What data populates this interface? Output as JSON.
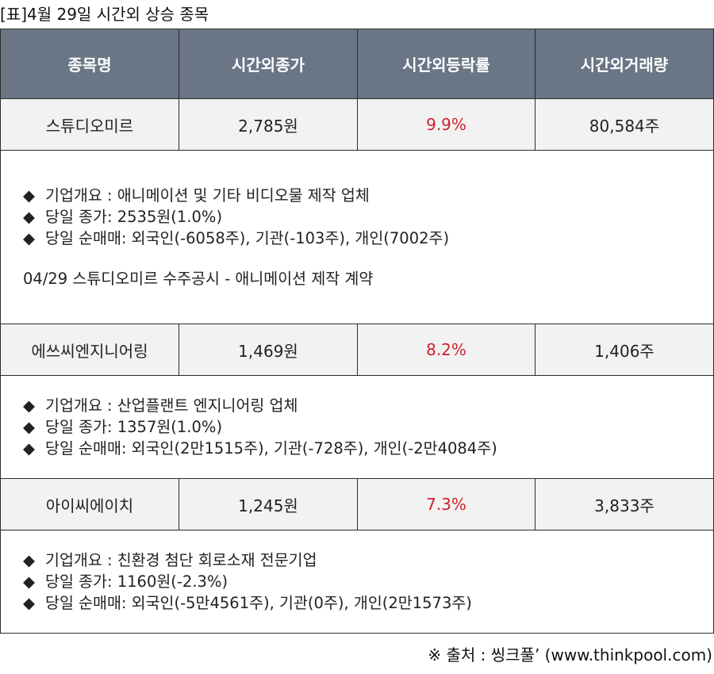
{
  "caption": "[표]4월 29일 시간외 상승 종목",
  "headers": [
    "종목명",
    "시간외종가",
    "시간외등락률",
    "시간외거래량"
  ],
  "stocks": [
    {
      "name": "스튜디오미르",
      "close": "2,785원",
      "change": "9.9%",
      "volume": "80,584주",
      "details": [
        "기업개요 : 애니메이션 및 기타 비디오물 제작 업체",
        "당일 종가: 2535원(1.0%)",
        "당일 순매매: 외국인(-6058주), 기관(-103주), 개인(7002주)"
      ],
      "note": "04/29 스튜디오미르 수주공시 - 애니메이션 제작 계약"
    },
    {
      "name": "에쓰씨엔지니어링",
      "close": "1,469원",
      "change": "8.2%",
      "volume": "1,406주",
      "details": [
        "기업개요 : 산업플랜트 엔지니어링 업체",
        "당일 종가: 1357원(1.0%)",
        "당일 순매매: 외국인(2만1515주), 기관(-728주), 개인(-2만4084주)"
      ]
    },
    {
      "name": "아이씨에이치",
      "close": "1,245원",
      "change": "7.3%",
      "volume": "3,833주",
      "details": [
        "기업개요 : 친환경 첨단 회로소재 전문기업",
        "당일 종가: 1160원(-2.3%)",
        "당일 순매매: 외국인(-5만4561주), 기관(0주), 개인(2만1573주)"
      ]
    }
  ],
  "bullet": "◆",
  "source": "※ 출처 : 씽크풀’ (www.thinkpool.com)",
  "colors": {
    "header_bg": "#6a7586",
    "row_bg": "#f2f2f2",
    "change_text": "#d0212d"
  }
}
